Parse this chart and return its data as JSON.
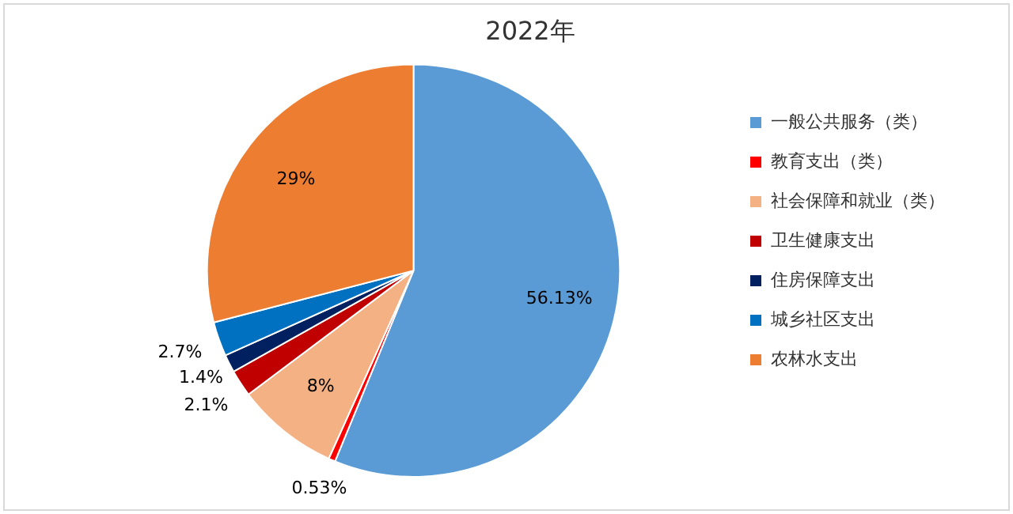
{
  "chart_data": {
    "type": "pie",
    "title": "2022年",
    "categories": [
      "一般公共服务（类）",
      "教育支出（类）",
      "社会保障和就业（类）",
      "卫生健康支出",
      "住房保障支出",
      "城乡社区支出",
      "农林水支出"
    ],
    "values": [
      56.13,
      0.53,
      8,
      2.1,
      1.4,
      2.7,
      29
    ],
    "value_labels": [
      "56.13%",
      "0.53%",
      "8%",
      "2.1%",
      "1.4%",
      "2.7%",
      "29%"
    ],
    "colors": [
      "#5b9bd5",
      "#ff0000",
      "#f4b183",
      "#c00000",
      "#002060",
      "#0070c0",
      "#ed7d31"
    ],
    "legend": "right"
  }
}
